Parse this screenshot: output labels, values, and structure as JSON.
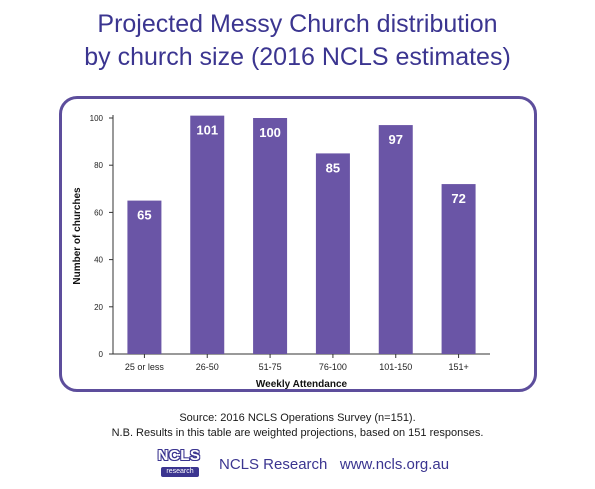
{
  "title_line1": "Projected Messy Church distribution",
  "title_line2": "by church size (2016 NCLS estimates)",
  "chart_data": {
    "type": "bar",
    "categories": [
      "25 or less",
      "26-50",
      "51-75",
      "76-100",
      "101-150",
      "151+"
    ],
    "values": [
      65,
      101,
      100,
      85,
      97,
      72
    ],
    "data_labels": [
      "65",
      "101",
      "100",
      "85",
      "97",
      "72"
    ],
    "xlabel": "Weekly Attendance",
    "ylabel": "Number of churches",
    "ylim": [
      0,
      100
    ],
    "yticks": [
      "0",
      "20",
      "40",
      "60",
      "80",
      "100"
    ],
    "bar_color": "#6a55a6",
    "grid": false,
    "legend": "none"
  },
  "source_line1": "Source: 2016 NCLS Operations Survey (n=151).",
  "source_line2": "N.B. Results in this table are weighted projections, based on 151 responses.",
  "logo": {
    "main": "NCLS",
    "sub": "research"
  },
  "footer_text": "NCLS Research   www.ncls.org.au",
  "colors": {
    "title": "#3b3590",
    "frame": "#5d4e9c",
    "bar": "#6a55a6"
  }
}
